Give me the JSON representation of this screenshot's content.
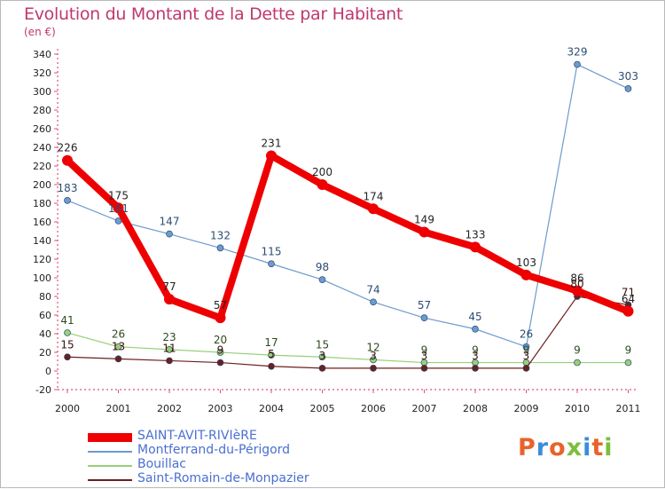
{
  "title": "Evolution du Montant de la Dette par Habitant",
  "subtitle": "(en €)",
  "brand": {
    "text": "Proxiti",
    "colors": [
      "#e8632b",
      "#3a8ed8",
      "#e8632b",
      "#7bbf3a",
      "#3a8ed8",
      "#e8632b",
      "#7bbf3a"
    ]
  },
  "chart_data": {
    "type": "line",
    "title": "Evolution du Montant de la Dette par Habitant",
    "ylabel": "(en €)",
    "xlabel": "",
    "categories": [
      "2000",
      "2001",
      "2002",
      "2003",
      "2004",
      "2005",
      "2006",
      "2007",
      "2008",
      "2009",
      "2010",
      "2011"
    ],
    "ylim": [
      -20,
      340
    ],
    "yticks": [
      -20,
      0,
      20,
      40,
      60,
      80,
      100,
      120,
      140,
      160,
      180,
      200,
      220,
      240,
      260,
      280,
      300,
      320,
      340
    ],
    "grid": false,
    "legend_position": "bottom-left",
    "series": [
      {
        "name": "SAINT-AVIT-RIVIèRE",
        "color": "#ee0000",
        "values": [
          226,
          175,
          77,
          57,
          231,
          200,
          174,
          149,
          133,
          103,
          86,
          64
        ],
        "label_color": "#222222"
      },
      {
        "name": "Montferrand-du-Périgord",
        "color": "#6c9bcf",
        "values": [
          183,
          161,
          147,
          132,
          115,
          98,
          74,
          57,
          45,
          26,
          329,
          303
        ],
        "label_color": "#2c4c74"
      },
      {
        "name": "Bouillac",
        "color": "#97d077",
        "values": [
          41,
          26,
          23,
          20,
          17,
          15,
          12,
          9,
          9,
          9,
          9,
          9
        ],
        "label_color": "#2d4a1e"
      },
      {
        "name": "Saint-Romain-de-Monpazier",
        "color": "#6b1f1f",
        "values": [
          15,
          13,
          11,
          9,
          5,
          3,
          3,
          3,
          3,
          3,
          80,
          71
        ],
        "label_color": "#3a1010"
      }
    ]
  }
}
